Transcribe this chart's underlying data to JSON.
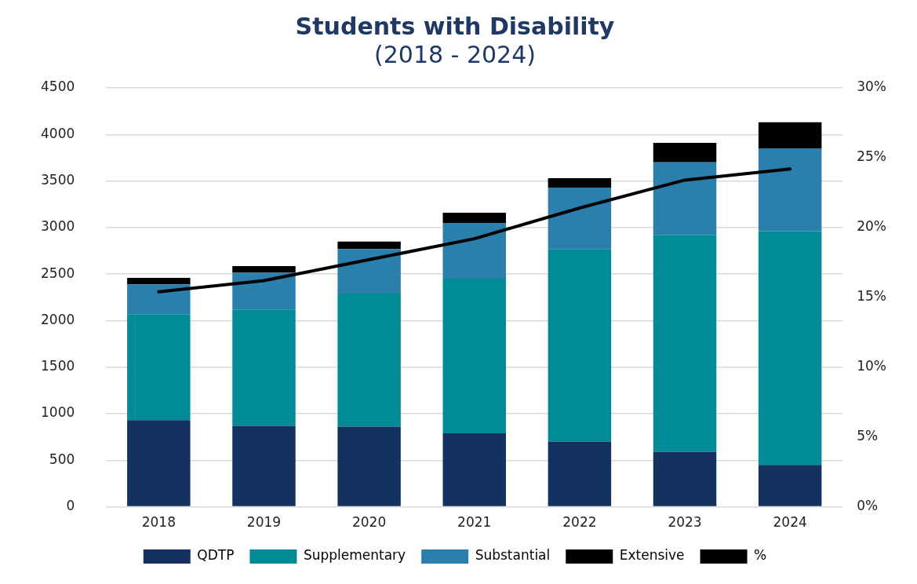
{
  "chart_data": {
    "type": "bar",
    "title": "Students with Disability",
    "subtitle": "(2018 - 2024)",
    "categories": [
      "2018",
      "2019",
      "2020",
      "2021",
      "2022",
      "2023",
      "2024"
    ],
    "stacked": true,
    "series": [
      {
        "name": "QDTP",
        "color": "#14325f",
        "values": [
          930,
          870,
          860,
          790,
          700,
          590,
          450
        ]
      },
      {
        "name": "Supplementary",
        "color": "#008b96",
        "values": [
          1140,
          1250,
          1430,
          1660,
          2070,
          2330,
          2510
        ]
      },
      {
        "name": "Substantial",
        "color": "#2a7fad",
        "values": [
          320,
          395,
          480,
          600,
          660,
          780,
          890
        ]
      },
      {
        "name": "Extensive",
        "color": "#000000",
        "values": [
          70,
          70,
          80,
          110,
          100,
          210,
          280
        ]
      },
      {
        "name": "%",
        "type": "line",
        "axis": "y2",
        "color": "#000000",
        "values": [
          15.4,
          16.2,
          17.7,
          19.2,
          21.4,
          23.4,
          24.2
        ]
      }
    ],
    "ylim": [
      0,
      4500
    ],
    "yticks": [
      0,
      500,
      1000,
      1500,
      2000,
      2500,
      3000,
      3500,
      4000,
      4500
    ],
    "y2lim": [
      0,
      30
    ],
    "y2ticks": [
      {
        "value": 0,
        "label": "0%"
      },
      {
        "value": 5,
        "label": "5%"
      },
      {
        "value": 10,
        "label": "10%"
      },
      {
        "value": 15,
        "label": "15%"
      },
      {
        "value": 20,
        "label": "20%"
      },
      {
        "value": 25,
        "label": "25%"
      },
      {
        "value": 30,
        "label": "30%"
      }
    ],
    "grid": "y",
    "legend": "bottom",
    "marker": "none",
    "line_style": "solid"
  }
}
